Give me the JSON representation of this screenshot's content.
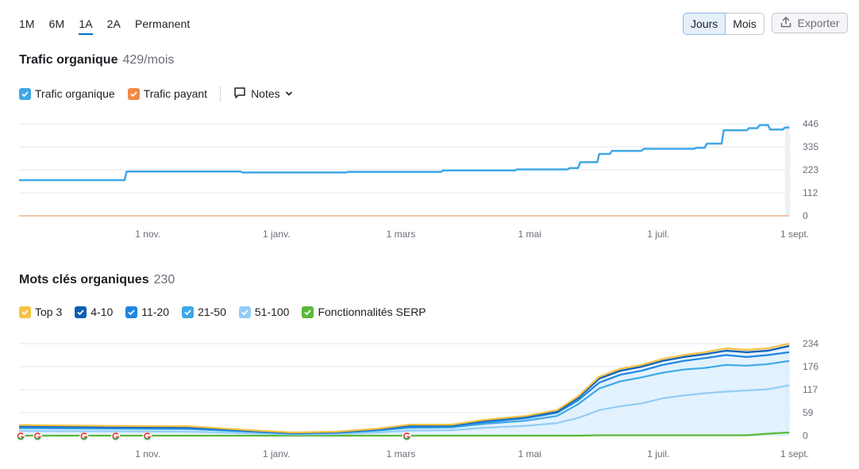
{
  "period_tabs": [
    {
      "label": "1M",
      "active": false
    },
    {
      "label": "6M",
      "active": false
    },
    {
      "label": "1A",
      "active": true
    },
    {
      "label": "2A",
      "active": false
    },
    {
      "label": "Permanent",
      "active": false
    }
  ],
  "granularity": {
    "days_label": "Jours",
    "months_label": "Mois",
    "active": "Jours"
  },
  "export": {
    "label": "Exporter",
    "icon": "upload-icon"
  },
  "traffic": {
    "title": "Trafic organique",
    "count": "429/mois",
    "legend": {
      "organic_label": "Trafic organique",
      "organic_color": "#3fa8e6",
      "paid_label": "Trafic payant",
      "paid_color": "#f08a43",
      "notes_label": "Notes"
    }
  },
  "keywords": {
    "title": "Mots clés organiques",
    "count": "230",
    "legend": [
      {
        "label": "Top 3",
        "color": "#f6c244"
      },
      {
        "label": "4-10",
        "color": "#0e5fb2"
      },
      {
        "label": "11-20",
        "color": "#1f86e0"
      },
      {
        "label": "21-50",
        "color": "#3fa8e6"
      },
      {
        "label": "51-100",
        "color": "#93cdf6"
      },
      {
        "label": "Fonctionnalités SERP",
        "color": "#5bb73b"
      }
    ]
  },
  "chart_data": [
    {
      "type": "line",
      "title": "Trafic organique",
      "x_ticks": [
        "1 nov.",
        "1 janv.",
        "1 mars",
        "1 mai",
        "1 juil.",
        "1 sept."
      ],
      "y_ticks": [
        "446",
        "335",
        "223",
        "112",
        "0"
      ],
      "ylim": [
        0,
        446
      ],
      "xlim": [
        0,
        365
      ],
      "tick_positions": [
        61,
        122,
        181,
        242,
        303,
        365
      ],
      "grid": true,
      "series": [
        {
          "name": "Trafic organique",
          "color": "#3fa8e6",
          "x": [
            0,
            50,
            51,
            105,
            106,
            155,
            156,
            200,
            201,
            235,
            236,
            260,
            261,
            265,
            266,
            274,
            275,
            280,
            281,
            295,
            296,
            320,
            321,
            325,
            326,
            333,
            334,
            345,
            346,
            350,
            351,
            355,
            356,
            362,
            363,
            365
          ],
          "y": [
            173,
            173,
            215,
            215,
            210,
            210,
            213,
            213,
            220,
            220,
            225,
            225,
            232,
            232,
            260,
            260,
            300,
            300,
            315,
            315,
            325,
            325,
            330,
            330,
            350,
            350,
            415,
            415,
            425,
            425,
            440,
            440,
            418,
            418,
            428,
            428
          ]
        },
        {
          "name": "Trafic payant",
          "color": "#f08a43",
          "x": [
            0,
            365
          ],
          "y": [
            0,
            0
          ]
        }
      ]
    },
    {
      "type": "area",
      "title": "Mots clés organiques",
      "x_ticks": [
        "1 nov.",
        "1 janv.",
        "1 mars",
        "1 mai",
        "1 juil.",
        "1 sept."
      ],
      "y_ticks": [
        "234",
        "176",
        "117",
        "59",
        "0"
      ],
      "ylim": [
        0,
        234
      ],
      "xlim": [
        0,
        365
      ],
      "tick_positions": [
        61,
        122,
        181,
        242,
        303,
        365
      ],
      "grid": true,
      "x": [
        0,
        40,
        80,
        110,
        130,
        150,
        170,
        185,
        205,
        220,
        240,
        255,
        265,
        275,
        285,
        295,
        305,
        315,
        325,
        335,
        345,
        355,
        365
      ],
      "series": [
        {
          "name": "Top 3",
          "color": "#f6c244",
          "values": [
            27,
            25,
            24,
            14,
            8,
            10,
            18,
            28,
            28,
            40,
            50,
            65,
            100,
            150,
            170,
            180,
            195,
            205,
            212,
            222,
            218,
            222,
            234
          ]
        },
        {
          "name": "4-10",
          "color": "#0e5fb2",
          "values": [
            25,
            23,
            22,
            13,
            7,
            9,
            17,
            26,
            26,
            38,
            48,
            62,
            96,
            145,
            165,
            175,
            190,
            200,
            207,
            216,
            212,
            216,
            228
          ]
        },
        {
          "name": "11-20",
          "color": "#1f86e0",
          "values": [
            22,
            20,
            19,
            11,
            6,
            8,
            15,
            23,
            24,
            34,
            44,
            58,
            90,
            135,
            155,
            165,
            180,
            190,
            197,
            205,
            200,
            205,
            212
          ]
        },
        {
          "name": "21-50",
          "color": "#3fa8e6",
          "values": [
            19,
            18,
            17,
            10,
            5,
            7,
            13,
            20,
            21,
            30,
            38,
            50,
            80,
            120,
            138,
            148,
            160,
            168,
            172,
            180,
            178,
            182,
            190
          ]
        },
        {
          "name": "51-100",
          "color": "#93cdf6",
          "values": [
            12,
            11,
            10,
            6,
            3,
            4,
            8,
            13,
            14,
            20,
            25,
            32,
            45,
            65,
            75,
            82,
            95,
            102,
            108,
            112,
            115,
            118,
            128
          ]
        },
        {
          "name": "Fonctionnalités SERP",
          "color": "#5bb73b",
          "values": [
            0,
            0,
            0,
            0,
            0,
            0,
            0,
            0,
            0,
            0,
            0,
            0,
            0,
            1,
            1,
            1,
            1,
            1,
            1,
            1,
            1,
            5,
            8
          ]
        }
      ],
      "google_update_markers_x": [
        0,
        8,
        30,
        45,
        60,
        183
      ]
    }
  ]
}
